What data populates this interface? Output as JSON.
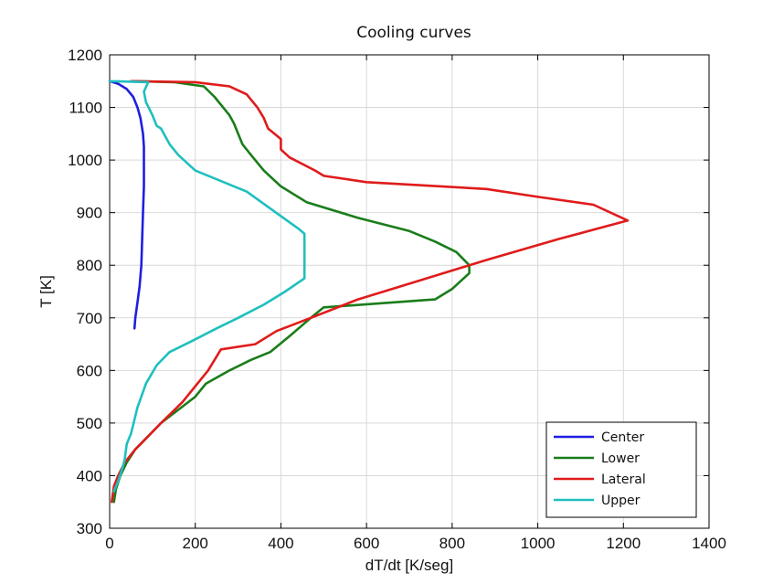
{
  "chart_data": {
    "type": "line",
    "title": "Cooling curves",
    "xlabel": "dT/dt [K/seg]",
    "ylabel": "T [K]",
    "xlim": [
      0,
      1400
    ],
    "ylim": [
      300,
      1200
    ],
    "xticks": [
      0,
      200,
      400,
      600,
      800,
      1000,
      1200,
      1400
    ],
    "yticks": [
      300,
      400,
      500,
      600,
      700,
      800,
      900,
      1000,
      1100,
      1200
    ],
    "grid": true,
    "legend_position": "bottom-right",
    "series": [
      {
        "name": "Center",
        "color": "#1f1fe0",
        "points": [
          [
            0,
            1150
          ],
          [
            20,
            1145
          ],
          [
            40,
            1135
          ],
          [
            55,
            1120
          ],
          [
            65,
            1100
          ],
          [
            72,
            1080
          ],
          [
            78,
            1050
          ],
          [
            80,
            1025
          ],
          [
            80,
            1000
          ],
          [
            80,
            950
          ],
          [
            78,
            900
          ],
          [
            76,
            850
          ],
          [
            74,
            800
          ],
          [
            70,
            760
          ],
          [
            65,
            730
          ],
          [
            60,
            700
          ],
          [
            58,
            680
          ]
        ]
      },
      {
        "name": "Lower",
        "color": "#1a7d1a",
        "points": [
          [
            10,
            350
          ],
          [
            15,
            375
          ],
          [
            25,
            400
          ],
          [
            40,
            425
          ],
          [
            60,
            450
          ],
          [
            90,
            475
          ],
          [
            120,
            500
          ],
          [
            160,
            525
          ],
          [
            200,
            550
          ],
          [
            225,
            575
          ],
          [
            280,
            600
          ],
          [
            330,
            620
          ],
          [
            375,
            635
          ],
          [
            420,
            665
          ],
          [
            470,
            700
          ],
          [
            500,
            720
          ],
          [
            760,
            735
          ],
          [
            800,
            755
          ],
          [
            840,
            785
          ],
          [
            840,
            800
          ],
          [
            810,
            825
          ],
          [
            760,
            845
          ],
          [
            700,
            865
          ],
          [
            580,
            890
          ],
          [
            460,
            920
          ],
          [
            400,
            950
          ],
          [
            360,
            980
          ],
          [
            330,
            1010
          ],
          [
            310,
            1030
          ],
          [
            300,
            1050
          ],
          [
            290,
            1070
          ],
          [
            280,
            1085
          ],
          [
            265,
            1100
          ],
          [
            245,
            1120
          ],
          [
            220,
            1140
          ],
          [
            150,
            1148
          ],
          [
            60,
            1150
          ]
        ]
      },
      {
        "name": "Lateral",
        "color": "#e01b1b",
        "points": [
          [
            5,
            350
          ],
          [
            10,
            380
          ],
          [
            20,
            400
          ],
          [
            35,
            425
          ],
          [
            60,
            450
          ],
          [
            90,
            475
          ],
          [
            120,
            500
          ],
          [
            170,
            540
          ],
          [
            230,
            600
          ],
          [
            260,
            640
          ],
          [
            340,
            650
          ],
          [
            390,
            675
          ],
          [
            470,
            700
          ],
          [
            580,
            735
          ],
          [
            720,
            770
          ],
          [
            880,
            810
          ],
          [
            1050,
            850
          ],
          [
            1210,
            885
          ],
          [
            1130,
            915
          ],
          [
            1000,
            930
          ],
          [
            880,
            945
          ],
          [
            600,
            958
          ],
          [
            500,
            970
          ],
          [
            480,
            980
          ],
          [
            420,
            1005
          ],
          [
            400,
            1020
          ],
          [
            400,
            1040
          ],
          [
            370,
            1060
          ],
          [
            360,
            1080
          ],
          [
            345,
            1100
          ],
          [
            320,
            1125
          ],
          [
            280,
            1140
          ],
          [
            200,
            1148
          ],
          [
            50,
            1150
          ]
        ]
      },
      {
        "name": "Upper",
        "color": "#1fbfbf",
        "points": [
          [
            0,
            1150
          ],
          [
            90,
            1148
          ],
          [
            80,
            1130
          ],
          [
            85,
            1110
          ],
          [
            100,
            1085
          ],
          [
            110,
            1065
          ],
          [
            120,
            1060
          ],
          [
            140,
            1030
          ],
          [
            160,
            1010
          ],
          [
            200,
            980
          ],
          [
            320,
            940
          ],
          [
            440,
            870
          ],
          [
            455,
            860
          ],
          [
            455,
            800
          ],
          [
            455,
            775
          ],
          [
            410,
            750
          ],
          [
            360,
            725
          ],
          [
            300,
            700
          ],
          [
            250,
            680
          ],
          [
            190,
            655
          ],
          [
            140,
            635
          ],
          [
            110,
            610
          ],
          [
            85,
            575
          ],
          [
            65,
            530
          ],
          [
            50,
            480
          ],
          [
            40,
            460
          ],
          [
            35,
            430
          ],
          [
            30,
            415
          ],
          [
            20,
            390
          ],
          [
            10,
            370
          ]
        ]
      }
    ]
  }
}
